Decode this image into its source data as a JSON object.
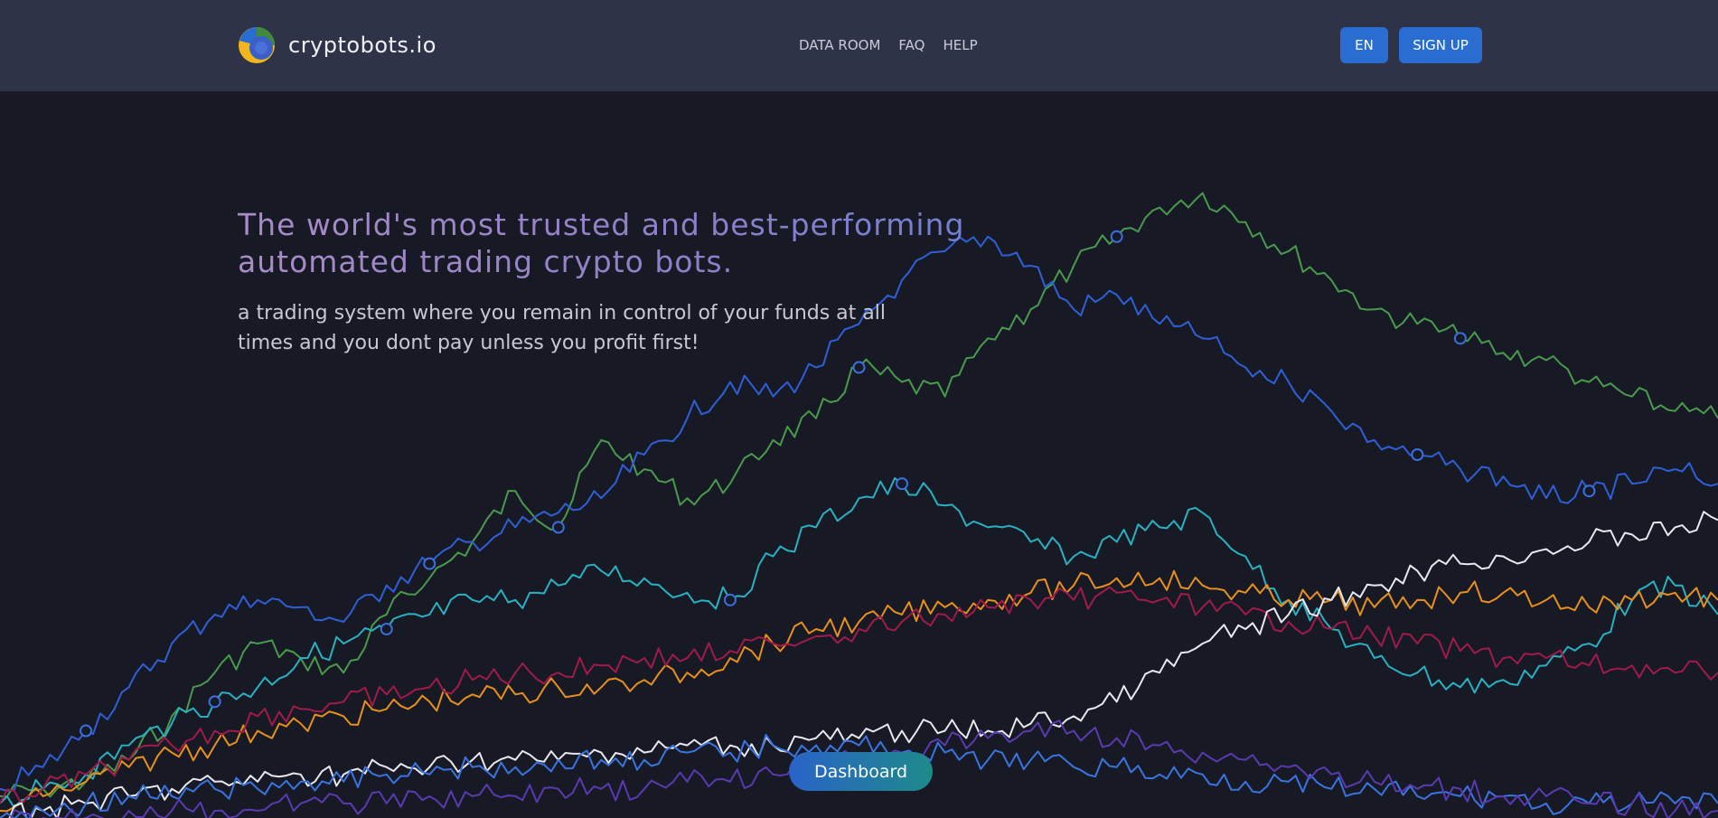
{
  "brand": {
    "name": "cryptobots.io",
    "logo_icon": "cryptobots-logo-icon"
  },
  "nav": {
    "items": [
      "DATA ROOM",
      "FAQ",
      "HELP"
    ]
  },
  "header_actions": {
    "language_label": "EN",
    "signup_label": "SIGN UP",
    "accent_color": "#2a6dd1"
  },
  "hero": {
    "title": "The world's most trusted and best-performing automated trading crypto bots.",
    "subtitle": "a trading system where you remain in control of your funds at all times and you dont pay unless you profit first!"
  },
  "cta": {
    "dashboard_label": "Dashboard"
  },
  "chart_data": {
    "type": "line",
    "background_decoration": true,
    "ylim": [
      0,
      100
    ],
    "x_count": 41,
    "series": [
      {
        "color": "#4a9a4e",
        "values": [
          3,
          4,
          5,
          8,
          14,
          20,
          24,
          22,
          20,
          28,
          33,
          38,
          45,
          40,
          52,
          48,
          44,
          46,
          52,
          55,
          62,
          60,
          58,
          66,
          70,
          76,
          80,
          84,
          86,
          82,
          78,
          74,
          70,
          68,
          66,
          64,
          63,
          60,
          58,
          56,
          55
        ],
        "markers": [
          13,
          20,
          26,
          34
        ]
      },
      {
        "color": "#2f5fd6",
        "values": [
          4,
          7,
          12,
          18,
          24,
          28,
          30,
          29,
          27,
          32,
          35,
          38,
          40,
          42,
          44,
          50,
          55,
          60,
          58,
          62,
          68,
          74,
          78,
          80,
          76,
          70,
          72,
          68,
          66,
          62,
          60,
          56,
          52,
          50,
          48,
          47,
          44,
          45,
          46,
          48,
          46
        ],
        "markers": [
          2,
          10,
          33,
          37
        ]
      },
      {
        "color": "#2ab0c0",
        "values": [
          2,
          4,
          6,
          10,
          13,
          16,
          18,
          22,
          24,
          26,
          28,
          30,
          30,
          32,
          34,
          33,
          31,
          30,
          36,
          40,
          44,
          46,
          43,
          40,
          38,
          36,
          38,
          40,
          42,
          36,
          30,
          26,
          22,
          20,
          18,
          19,
          21,
          24,
          30,
          32,
          28
        ],
        "markers": [
          5,
          9,
          17,
          21
        ]
      },
      {
        "color": "#e8901c",
        "values": [
          1,
          3,
          5,
          7,
          9,
          10,
          12,
          13,
          14,
          15,
          16,
          17,
          17,
          18,
          18,
          19,
          20,
          22,
          24,
          26,
          27,
          28,
          29,
          30,
          31,
          32,
          33,
          33,
          32,
          31,
          30,
          30,
          29,
          30,
          31,
          31,
          30,
          29,
          30,
          31,
          30
        ],
        "markers": []
      },
      {
        "color": "#a01a4a",
        "values": [
          2,
          4,
          6,
          8,
          10,
          12,
          14,
          15,
          16,
          17,
          18,
          19,
          20,
          20,
          21,
          22,
          22,
          23,
          24,
          25,
          26,
          27,
          28,
          29,
          30,
          30,
          31,
          30,
          29,
          28,
          27,
          26,
          25,
          24,
          23,
          22,
          22,
          21,
          21,
          20,
          20
        ],
        "markers": []
      },
      {
        "color": "#e8e8ee",
        "values": [
          0,
          1,
          2,
          3,
          4,
          5,
          5,
          6,
          6,
          7,
          7,
          8,
          8,
          8,
          9,
          9,
          10,
          10,
          10,
          11,
          11,
          12,
          12,
          12,
          13,
          14,
          16,
          20,
          24,
          26,
          28,
          30,
          32,
          34,
          35,
          36,
          37,
          38,
          39,
          40,
          41
        ],
        "markers": []
      },
      {
        "color": "#3a74e0",
        "values": [
          0,
          1,
          2,
          3,
          3,
          4,
          4,
          5,
          5,
          6,
          6,
          7,
          7,
          8,
          8,
          8,
          9,
          9,
          10,
          10,
          10,
          9,
          9,
          8,
          8,
          7,
          7,
          6,
          6,
          5,
          5,
          4,
          4,
          3,
          3,
          3,
          2,
          2,
          2,
          2,
          2
        ],
        "markers": []
      },
      {
        "color": "#5a3ab0",
        "values": [
          0,
          0,
          0,
          1,
          1,
          1,
          1,
          2,
          2,
          2,
          3,
          3,
          3,
          4,
          4,
          4,
          5,
          5,
          6,
          7,
          8,
          9,
          10,
          11,
          12,
          12,
          11,
          10,
          9,
          8,
          7,
          6,
          5,
          4,
          4,
          3,
          3,
          2,
          2,
          1,
          1
        ],
        "markers": []
      }
    ]
  }
}
